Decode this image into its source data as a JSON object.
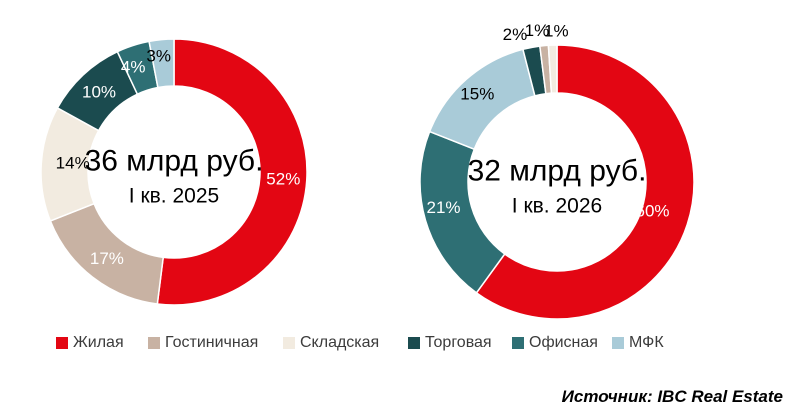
{
  "chart_data": [
    {
      "type": "pie",
      "subtype": "donut",
      "title": "36 млрд руб.",
      "subtitle": "I кв. 2025",
      "unit": "%",
      "direction": "clockwise-from-top",
      "segments": [
        {
          "label": "Жилая",
          "value": 52,
          "color": "#E30613",
          "text_color": "#FFFFFF",
          "label_placement": "inside"
        },
        {
          "label": "Гостиничная",
          "value": 17,
          "color": "#C8B2A3",
          "text_color": "#FFFFFF",
          "label_placement": "inside"
        },
        {
          "label": "Складская",
          "value": 14,
          "color": "#F2EBE0",
          "text_color": "#000000",
          "label_placement": "inside"
        },
        {
          "label": "Торговая",
          "value": 10,
          "color": "#1B4B4F",
          "text_color": "#FFFFFF",
          "label_placement": "inside"
        },
        {
          "label": "Офисная",
          "value": 4,
          "color": "#2E6F74",
          "text_color": "#FFFFFF",
          "label_placement": "inside"
        },
        {
          "label": "МФК",
          "value": 3,
          "color": "#A9CBD8",
          "text_color": "#000000",
          "label_placement": "inside"
        }
      ]
    },
    {
      "type": "pie",
      "subtype": "donut",
      "title": "32 млрд руб.",
      "subtitle": "I кв. 2026",
      "unit": "%",
      "direction": "clockwise-from-top",
      "segments": [
        {
          "label": "Жилая",
          "value": 60,
          "color": "#E30613",
          "text_color": "#FFFFFF",
          "label_placement": "inside"
        },
        {
          "label": "Офисная",
          "value": 21,
          "color": "#2E6F74",
          "text_color": "#FFFFFF",
          "label_placement": "inside"
        },
        {
          "label": "МФК",
          "value": 15,
          "color": "#A9CBD8",
          "text_color": "#000000",
          "label_placement": "inside"
        },
        {
          "label": "Торговая",
          "value": 2,
          "color": "#1B4B4F",
          "text_color": "#000000",
          "label_placement": "outside"
        },
        {
          "label": "Гостиничная",
          "value": 1,
          "color": "#C8B2A3",
          "text_color": "#000000",
          "label_placement": "outside"
        },
        {
          "label": "Складская",
          "value": 1,
          "color": "#F2EBE0",
          "text_color": "#000000",
          "label_placement": "outside"
        }
      ]
    }
  ],
  "legend": {
    "items": [
      {
        "label": "Жилая",
        "color": "#E30613"
      },
      {
        "label": "Гостиничная",
        "color": "#C8B2A3"
      },
      {
        "label": "Складская",
        "color": "#F2EBE0"
      },
      {
        "label": "Торговая",
        "color": "#1B4B4F"
      },
      {
        "label": "Офисная",
        "color": "#2E6F74"
      },
      {
        "label": "МФК",
        "color": "#A9CBD8"
      }
    ]
  },
  "source_note": "Источник: IBC Real Estate"
}
